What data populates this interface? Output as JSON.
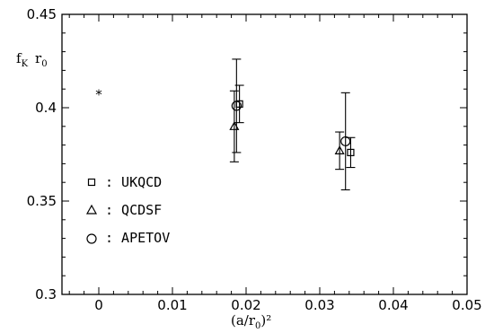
{
  "chart_data": {
    "type": "scatter",
    "title": "",
    "xlabel": "(a/r0)²",
    "xlabel_main": "(a/r",
    "xlabel_sub": "0",
    "xlabel_tail": ")²",
    "ylabel": "fK r0",
    "ylabel_f": "f",
    "ylabel_sub1": "K",
    "ylabel_r": "r",
    "ylabel_sub2": "0",
    "xlim": [
      -0.005,
      0.05
    ],
    "ylim": [
      0.3,
      0.45
    ],
    "xticks": [
      0,
      0.01,
      0.02,
      0.03,
      0.04,
      0.05
    ],
    "xtick_labels": [
      "0",
      "0.01",
      "0.02",
      "0.03",
      "0.04",
      "0.05"
    ],
    "yticks": [
      0.3,
      0.35,
      0.4,
      0.45
    ],
    "ytick_labels": [
      "0.3",
      "0.35",
      "0.4",
      "0.45"
    ],
    "grid": false,
    "legend_position": "left",
    "series": [
      {
        "name": ": UKQCD",
        "marker": "square",
        "points": [
          {
            "x": 0.0191,
            "y": 0.402,
            "err": 0.01
          },
          {
            "x": 0.0342,
            "y": 0.376,
            "err": 0.008
          }
        ]
      },
      {
        "name": ": QCDSF",
        "marker": "triangle",
        "points": [
          {
            "x": 0.0184,
            "y": 0.39,
            "err": 0.019
          },
          {
            "x": 0.0327,
            "y": 0.377,
            "err": 0.01
          }
        ]
      },
      {
        "name": ": APETOV",
        "marker": "circle",
        "points": [
          {
            "x": 0.0187,
            "y": 0.401,
            "err": 0.025
          },
          {
            "x": 0.0335,
            "y": 0.382,
            "err": 0.026
          }
        ]
      }
    ],
    "extra_points": [
      {
        "x": 0,
        "y": 0.409,
        "marker": "asterisk",
        "label": "*"
      }
    ]
  }
}
